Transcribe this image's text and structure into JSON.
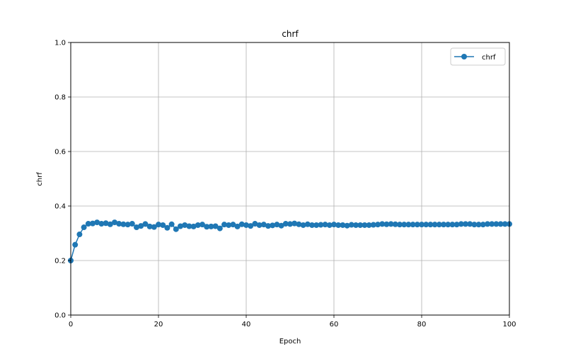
{
  "chart_data": {
    "type": "line",
    "title": "chrf",
    "xlabel": "Epoch",
    "ylabel": "chrf",
    "xlim": [
      0,
      100
    ],
    "ylim": [
      0,
      1.0
    ],
    "xticks": [
      "0",
      "20",
      "40",
      "60",
      "80",
      "100"
    ],
    "yticks": [
      "0.0",
      "0.2",
      "0.4",
      "0.6",
      "0.8",
      "1.0"
    ],
    "grid": true,
    "legend_position": "top-right",
    "series": [
      {
        "name": "chrf",
        "color": "#1f77b4",
        "marker": "circle",
        "x": [
          0,
          1,
          2,
          3,
          4,
          5,
          6,
          7,
          8,
          9,
          10,
          11,
          12,
          13,
          14,
          15,
          16,
          17,
          18,
          19,
          20,
          21,
          22,
          23,
          24,
          25,
          26,
          27,
          28,
          29,
          30,
          31,
          32,
          33,
          34,
          35,
          36,
          37,
          38,
          39,
          40,
          41,
          42,
          43,
          44,
          45,
          46,
          47,
          48,
          49,
          50,
          51,
          52,
          53,
          54,
          55,
          56,
          57,
          58,
          59,
          60,
          61,
          62,
          63,
          64,
          65,
          66,
          67,
          68,
          69,
          70,
          71,
          72,
          73,
          74,
          75,
          76,
          77,
          78,
          79,
          80,
          81,
          82,
          83,
          84,
          85,
          86,
          87,
          88,
          89,
          90,
          91,
          92,
          93,
          94,
          95,
          96,
          97,
          98,
          99,
          100
        ],
        "y": [
          0.2,
          0.258,
          0.296,
          0.322,
          0.335,
          0.336,
          0.34,
          0.335,
          0.337,
          0.333,
          0.34,
          0.335,
          0.333,
          0.332,
          0.335,
          0.322,
          0.327,
          0.334,
          0.325,
          0.323,
          0.332,
          0.33,
          0.32,
          0.333,
          0.315,
          0.326,
          0.33,
          0.326,
          0.325,
          0.33,
          0.332,
          0.324,
          0.325,
          0.326,
          0.318,
          0.332,
          0.33,
          0.332,
          0.325,
          0.333,
          0.33,
          0.327,
          0.335,
          0.33,
          0.332,
          0.327,
          0.329,
          0.332,
          0.328,
          0.335,
          0.334,
          0.336,
          0.333,
          0.33,
          0.333,
          0.33,
          0.33,
          0.331,
          0.332,
          0.33,
          0.332,
          0.33,
          0.33,
          0.328,
          0.331,
          0.33,
          0.33,
          0.33,
          0.33,
          0.331,
          0.332,
          0.334,
          0.333,
          0.334,
          0.333,
          0.332,
          0.332,
          0.332,
          0.332,
          0.332,
          0.332,
          0.332,
          0.332,
          0.332,
          0.332,
          0.332,
          0.332,
          0.332,
          0.332,
          0.334,
          0.334,
          0.334,
          0.332,
          0.332,
          0.332,
          0.334,
          0.334,
          0.334,
          0.334,
          0.334,
          0.334
        ]
      }
    ]
  }
}
